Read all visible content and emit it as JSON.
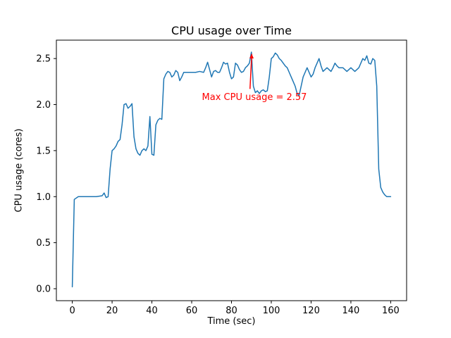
{
  "chart_data": {
    "type": "line",
    "title": "CPU usage over Time",
    "xlabel": "Time (sec)",
    "ylabel": "CPU usage (cores)",
    "xlim": [
      -8,
      168
    ],
    "ylim": [
      -0.13,
      2.7
    ],
    "xticks": [
      0,
      20,
      40,
      60,
      80,
      100,
      120,
      140,
      160
    ],
    "yticks": [
      0.0,
      0.5,
      1.0,
      1.5,
      2.0,
      2.5
    ],
    "xtick_labels": [
      "0",
      "20",
      "40",
      "60",
      "80",
      "100",
      "120",
      "140",
      "160"
    ],
    "ytick_labels": [
      "0.0",
      "0.5",
      "1.0",
      "1.5",
      "2.0",
      "2.5"
    ],
    "grid": false,
    "line_color": "#1f77b4",
    "max_value": 2.57,
    "series": [
      {
        "name": "CPU usage",
        "points": [
          [
            0,
            0.02
          ],
          [
            1,
            0.97
          ],
          [
            3,
            1.0
          ],
          [
            6,
            1.0
          ],
          [
            9,
            1.0
          ],
          [
            12,
            1.0
          ],
          [
            15,
            1.01
          ],
          [
            16,
            1.04
          ],
          [
            17,
            0.99
          ],
          [
            18,
            1.0
          ],
          [
            19,
            1.3
          ],
          [
            20,
            1.5
          ],
          [
            21,
            1.52
          ],
          [
            22,
            1.55
          ],
          [
            23,
            1.6
          ],
          [
            24,
            1.62
          ],
          [
            25,
            1.78
          ],
          [
            26,
            2.0
          ],
          [
            27,
            2.01
          ],
          [
            28,
            1.96
          ],
          [
            29,
            1.98
          ],
          [
            30,
            2.01
          ],
          [
            31,
            1.65
          ],
          [
            32,
            1.52
          ],
          [
            33,
            1.47
          ],
          [
            34,
            1.45
          ],
          [
            35,
            1.5
          ],
          [
            36,
            1.52
          ],
          [
            37,
            1.5
          ],
          [
            38,
            1.55
          ],
          [
            39,
            1.87
          ],
          [
            40,
            1.46
          ],
          [
            41,
            1.45
          ],
          [
            42,
            1.78
          ],
          [
            43,
            1.83
          ],
          [
            44,
            1.85
          ],
          [
            45,
            1.84
          ],
          [
            46,
            2.28
          ],
          [
            47,
            2.33
          ],
          [
            48,
            2.36
          ],
          [
            49,
            2.35
          ],
          [
            50,
            2.3
          ],
          [
            51,
            2.32
          ],
          [
            52,
            2.37
          ],
          [
            53,
            2.35
          ],
          [
            54,
            2.26
          ],
          [
            55,
            2.3
          ],
          [
            56,
            2.35
          ],
          [
            57,
            2.35
          ],
          [
            58,
            2.35
          ],
          [
            60,
            2.35
          ],
          [
            62,
            2.35
          ],
          [
            64,
            2.36
          ],
          [
            66,
            2.35
          ],
          [
            67,
            2.4
          ],
          [
            68,
            2.46
          ],
          [
            69,
            2.38
          ],
          [
            70,
            2.3
          ],
          [
            71,
            2.36
          ],
          [
            72,
            2.37
          ],
          [
            73,
            2.35
          ],
          [
            74,
            2.35
          ],
          [
            75,
            2.4
          ],
          [
            76,
            2.46
          ],
          [
            77,
            2.44
          ],
          [
            78,
            2.45
          ],
          [
            79,
            2.35
          ],
          [
            80,
            2.28
          ],
          [
            81,
            2.3
          ],
          [
            82,
            2.45
          ],
          [
            83,
            2.43
          ],
          [
            84,
            2.38
          ],
          [
            85,
            2.35
          ],
          [
            86,
            2.36
          ],
          [
            87,
            2.4
          ],
          [
            88,
            2.42
          ],
          [
            89,
            2.45
          ],
          [
            90,
            2.57
          ],
          [
            91,
            2.2
          ],
          [
            92,
            2.13
          ],
          [
            93,
            2.15
          ],
          [
            94,
            2.12
          ],
          [
            95,
            2.15
          ],
          [
            96,
            2.16
          ],
          [
            97,
            2.14
          ],
          [
            98,
            2.15
          ],
          [
            99,
            2.3
          ],
          [
            100,
            2.5
          ],
          [
            101,
            2.52
          ],
          [
            102,
            2.56
          ],
          [
            103,
            2.54
          ],
          [
            104,
            2.5
          ],
          [
            105,
            2.48
          ],
          [
            106,
            2.45
          ],
          [
            107,
            2.42
          ],
          [
            108,
            2.4
          ],
          [
            109,
            2.35
          ],
          [
            110,
            2.3
          ],
          [
            111,
            2.25
          ],
          [
            112,
            2.2
          ],
          [
            113,
            2.12
          ],
          [
            114,
            2.1
          ],
          [
            115,
            2.2
          ],
          [
            116,
            2.3
          ],
          [
            117,
            2.35
          ],
          [
            118,
            2.4
          ],
          [
            119,
            2.35
          ],
          [
            120,
            2.3
          ],
          [
            121,
            2.33
          ],
          [
            122,
            2.4
          ],
          [
            123,
            2.45
          ],
          [
            124,
            2.5
          ],
          [
            125,
            2.42
          ],
          [
            126,
            2.36
          ],
          [
            127,
            2.38
          ],
          [
            128,
            2.4
          ],
          [
            129,
            2.38
          ],
          [
            130,
            2.36
          ],
          [
            131,
            2.4
          ],
          [
            132,
            2.45
          ],
          [
            133,
            2.42
          ],
          [
            134,
            2.4
          ],
          [
            135,
            2.4
          ],
          [
            136,
            2.4
          ],
          [
            137,
            2.38
          ],
          [
            138,
            2.36
          ],
          [
            139,
            2.38
          ],
          [
            140,
            2.4
          ],
          [
            141,
            2.38
          ],
          [
            142,
            2.36
          ],
          [
            143,
            2.38
          ],
          [
            144,
            2.4
          ],
          [
            145,
            2.45
          ],
          [
            146,
            2.5
          ],
          [
            147,
            2.48
          ],
          [
            148,
            2.53
          ],
          [
            149,
            2.45
          ],
          [
            150,
            2.44
          ],
          [
            151,
            2.5
          ],
          [
            152,
            2.48
          ],
          [
            153,
            2.2
          ],
          [
            154,
            1.3
          ],
          [
            155,
            1.1
          ],
          [
            156,
            1.05
          ],
          [
            157,
            1.02
          ],
          [
            158,
            1.0
          ],
          [
            159,
            1.0
          ],
          [
            160,
            1.0
          ]
        ]
      }
    ],
    "annotation": {
      "text": "Max CPU usage = 2.57",
      "color": "#ff0000",
      "text_xy": [
        91.5,
        2.05
      ],
      "arrow_from": [
        89.3,
        2.17
      ],
      "arrow_to": [
        90.2,
        2.55
      ]
    }
  }
}
